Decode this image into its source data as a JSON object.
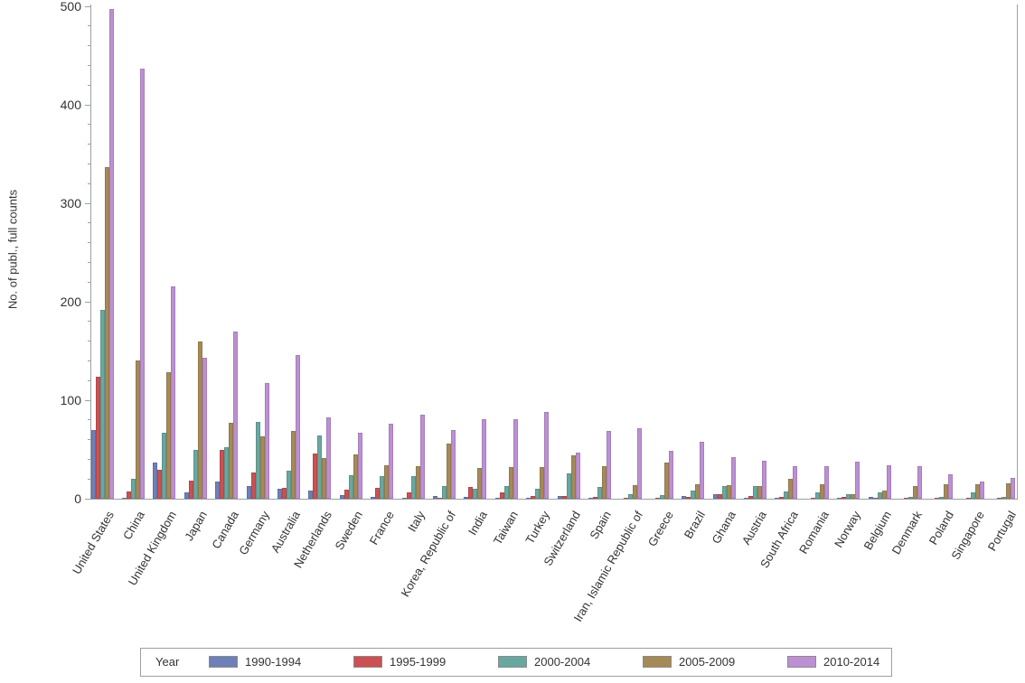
{
  "chart_data": {
    "type": "bar",
    "title": "",
    "xlabel": "",
    "ylabel": "No. of publ., full counts",
    "ylim": [
      0,
      500
    ],
    "yticks": [
      0,
      100,
      200,
      300,
      400,
      500
    ],
    "ytick_minor_step": 20,
    "grid": false,
    "legend": {
      "title": "Year",
      "position": "bottom"
    },
    "categories": [
      "United States",
      "China",
      "United Kingdom",
      "Japan",
      "Canada",
      "Germany",
      "Australia",
      "Netherlands",
      "Sweden",
      "France",
      "Italy",
      "Korea, Republic of",
      "India",
      "Taiwan",
      "Turkey",
      "Switzerland",
      "Spain",
      "Iran, Islamic Republic of",
      "Greece",
      "Brazil",
      "Ghana",
      "Austria",
      "South Africa",
      "Romania",
      "Norway",
      "Belgium",
      "Denmark",
      "Poland",
      "Singapore",
      "Portugal"
    ],
    "series": [
      {
        "name": "1990-1994",
        "color": "#6e80b7",
        "values": [
          70,
          1,
          37,
          6,
          17,
          13,
          10,
          8,
          4,
          2,
          1,
          3,
          2,
          1,
          1,
          3,
          1,
          0,
          0,
          3,
          5,
          1,
          1,
          0,
          1,
          2,
          0,
          0,
          0,
          0
        ]
      },
      {
        "name": "1995-1999",
        "color": "#cb5152",
        "values": [
          124,
          7,
          29,
          18,
          50,
          27,
          11,
          46,
          9,
          11,
          6,
          1,
          12,
          6,
          3,
          3,
          2,
          1,
          1,
          2,
          5,
          3,
          2,
          1,
          2,
          1,
          1,
          1,
          1,
          1
        ]
      },
      {
        "name": "2000-2004",
        "color": "#68a8a0",
        "values": [
          192,
          20,
          67,
          50,
          52,
          78,
          28,
          64,
          24,
          23,
          23,
          13,
          10,
          13,
          10,
          26,
          12,
          5,
          4,
          8,
          13,
          13,
          7,
          6,
          5,
          6,
          2,
          2,
          6,
          2
        ]
      },
      {
        "name": "2005-2009",
        "color": "#a58a58",
        "values": [
          337,
          140,
          128,
          160,
          77,
          63,
          69,
          41,
          45,
          34,
          33,
          56,
          31,
          32,
          32,
          44,
          33,
          14,
          37,
          15,
          14,
          13,
          20,
          15,
          5,
          8,
          13,
          15,
          15,
          16
        ]
      },
      {
        "name": "2010-2014",
        "color": "#bc90d2",
        "values": [
          497,
          437,
          216,
          143,
          170,
          117,
          146,
          83,
          67,
          76,
          85,
          70,
          81,
          81,
          88,
          47,
          69,
          72,
          49,
          58,
          42,
          39,
          33,
          33,
          38,
          34,
          33,
          25,
          17,
          21
        ]
      }
    ]
  },
  "colors": {
    "axis": "#9aa0a6",
    "text": "#333333",
    "background": "#ffffff"
  }
}
